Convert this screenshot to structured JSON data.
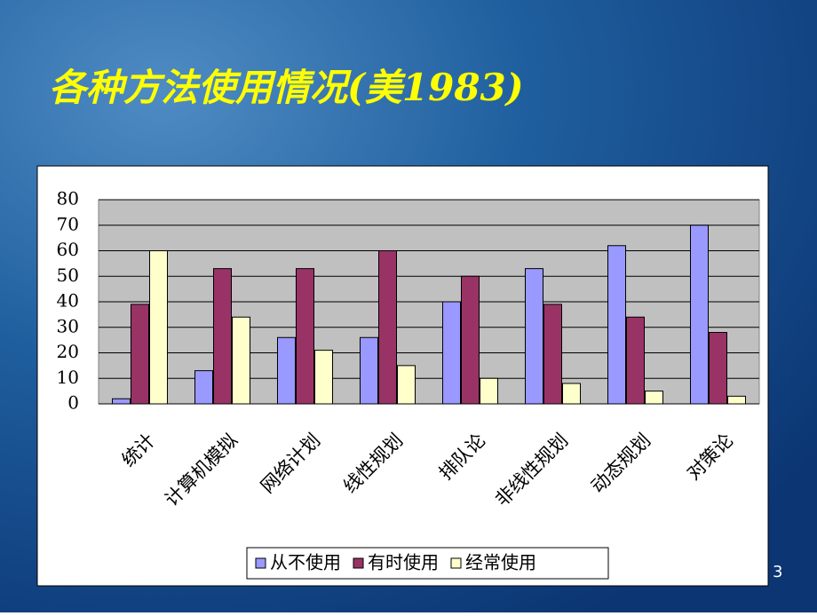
{
  "chart_data": {
    "type": "bar",
    "title": "各种方法使用情况(美1983)",
    "categories": [
      "统计",
      "计算机模拟",
      "网络计划",
      "线性规划",
      "排队论",
      "非线性规划",
      "动态规划",
      "对策论"
    ],
    "series": [
      {
        "name": "从不使用",
        "color": "#9999ff",
        "values": [
          2,
          13,
          26,
          26,
          40,
          53,
          62,
          70
        ]
      },
      {
        "name": "有时使用",
        "color": "#993366",
        "values": [
          39,
          53,
          53,
          60,
          50,
          39,
          34,
          28
        ]
      },
      {
        "name": "经常使用",
        "color": "#ffffcc",
        "values": [
          60,
          34,
          21,
          15,
          10,
          8,
          5,
          3
        ]
      }
    ],
    "ylim": [
      0,
      80
    ],
    "yticks": [
      0,
      10,
      20,
      30,
      40,
      50,
      60,
      70,
      80
    ],
    "grid": true,
    "legend": "bottom"
  },
  "page_number": "3"
}
